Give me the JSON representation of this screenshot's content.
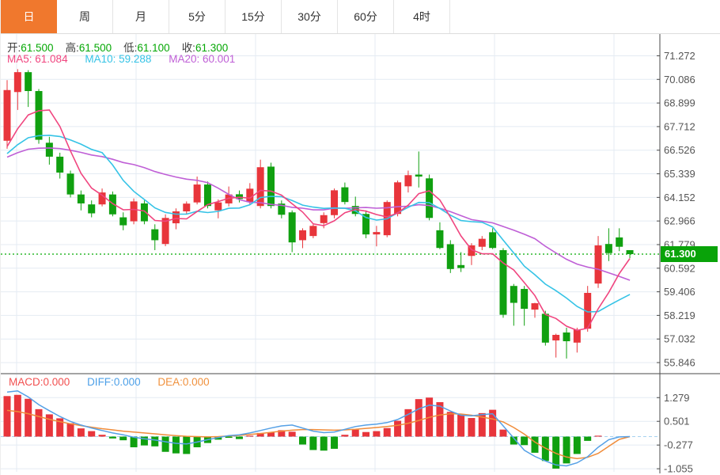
{
  "tabs": {
    "active_index": 0,
    "items": [
      {
        "label": "日"
      },
      {
        "label": "周"
      },
      {
        "label": "月"
      },
      {
        "label": "5分"
      },
      {
        "label": "15分"
      },
      {
        "label": "30分"
      },
      {
        "label": "60分"
      },
      {
        "label": "4时"
      }
    ]
  },
  "ohlc_row": {
    "open": {
      "label": "开:",
      "value": "61.500"
    },
    "high": {
      "label": "高:",
      "value": "61.500"
    },
    "low": {
      "label": "低:",
      "value": "61.100"
    },
    "close": {
      "label": "收:",
      "value": "61.300"
    }
  },
  "ma_row": {
    "ma5": {
      "label": "MA5:",
      "value": "61.084"
    },
    "ma10": {
      "label": "MA10:",
      "value": "59.288"
    },
    "ma20": {
      "label": "MA20:",
      "value": "60.001"
    }
  },
  "macd_row": {
    "macd": {
      "label": "MACD:",
      "value": "0.000"
    },
    "diff": {
      "label": "DIFF:",
      "value": "0.000"
    },
    "dea": {
      "label": "DEA:",
      "value": "0.000"
    }
  },
  "price_line": {
    "label": "61.300",
    "value": 61.3
  },
  "colors": {
    "up": "#e8353b",
    "down": "#10a010",
    "ma5": "#f0457f",
    "ma10": "#35c3e6",
    "ma20": "#bf5fd6",
    "diff_line": "#55a0e6",
    "dea_line": "#f08c3a",
    "price_dotted": "#2db92d",
    "badge_bg": "#09a309",
    "tab_active_bg": "#f0782d",
    "grid": "#e4ebf3",
    "axis": "#4a4a4a",
    "axis_label": "#555555",
    "zero_dashed": "#a6d2f0"
  },
  "chart_data": {
    "type": "candlestick",
    "title": "",
    "xlabel": "",
    "ylabel": "",
    "legend": [
      "MA5",
      "MA10",
      "MA20",
      "MACD",
      "DIFF",
      "DEA"
    ],
    "panels": [
      {
        "type": "candlestick",
        "y_ticks": [
          71.272,
          70.086,
          68.899,
          67.712,
          66.526,
          65.339,
          64.152,
          62.966,
          61.779,
          60.592,
          59.406,
          58.219,
          57.032,
          55.846
        ],
        "last_price": 61.3,
        "ma_periods": [
          5,
          10,
          20
        ],
        "ma_seed": 66.0,
        "candles": [
          [
            67.0,
            70.05,
            66.6,
            69.55
          ],
          [
            69.45,
            70.6,
            68.55,
            70.45
          ],
          [
            70.45,
            70.55,
            68.7,
            69.5
          ],
          [
            69.5,
            69.6,
            66.85,
            67.05
          ],
          [
            66.9,
            67.2,
            65.8,
            66.2
          ],
          [
            66.2,
            66.4,
            65.1,
            65.4
          ],
          [
            65.35,
            65.5,
            64.15,
            64.3
          ],
          [
            64.3,
            64.5,
            63.5,
            63.85
          ],
          [
            63.8,
            64.0,
            63.15,
            63.35
          ],
          [
            63.8,
            64.6,
            63.7,
            64.4
          ],
          [
            64.3,
            64.45,
            63.2,
            63.3
          ],
          [
            63.15,
            63.4,
            62.5,
            62.75
          ],
          [
            62.95,
            64.1,
            62.8,
            63.95
          ],
          [
            63.85,
            64.0,
            62.8,
            62.95
          ],
          [
            62.55,
            62.8,
            61.5,
            62.0
          ],
          [
            61.81,
            63.3,
            61.7,
            63.12
          ],
          [
            62.85,
            63.6,
            62.55,
            63.45
          ],
          [
            63.45,
            63.95,
            63.3,
            63.84
          ],
          [
            63.9,
            65.2,
            63.8,
            64.8
          ],
          [
            64.8,
            64.95,
            63.6,
            63.72
          ],
          [
            63.5,
            64.05,
            63.1,
            63.9
          ],
          [
            63.85,
            64.7,
            63.7,
            64.3
          ],
          [
            64.31,
            64.5,
            63.9,
            64.07
          ],
          [
            63.92,
            64.87,
            63.8,
            64.59
          ],
          [
            63.72,
            66.05,
            63.6,
            65.67
          ],
          [
            65.7,
            65.9,
            63.6,
            63.72
          ],
          [
            63.84,
            64.0,
            63.1,
            63.28
          ],
          [
            63.4,
            63.5,
            61.4,
            61.89
          ],
          [
            62.0,
            62.6,
            61.6,
            62.5
          ],
          [
            62.21,
            62.8,
            62.1,
            62.72
          ],
          [
            62.86,
            63.4,
            62.6,
            63.26
          ],
          [
            63.26,
            64.6,
            63.1,
            64.51
          ],
          [
            64.66,
            64.9,
            63.8,
            63.92
          ],
          [
            63.72,
            64.19,
            63.2,
            63.32
          ],
          [
            63.32,
            63.5,
            62.1,
            62.29
          ],
          [
            62.29,
            62.72,
            61.69,
            62.41
          ],
          [
            62.25,
            64.0,
            62.15,
            63.92
          ],
          [
            63.32,
            65.0,
            63.2,
            64.91
          ],
          [
            64.71,
            65.5,
            64.4,
            65.27
          ],
          [
            65.3,
            66.46,
            64.65,
            65.2
          ],
          [
            65.11,
            65.3,
            63.0,
            63.12
          ],
          [
            62.5,
            62.9,
            61.55,
            61.61
          ],
          [
            61.8,
            62.0,
            60.35,
            60.55
          ],
          [
            60.75,
            61.4,
            60.4,
            60.6
          ],
          [
            61.21,
            61.85,
            60.75,
            61.74
          ],
          [
            61.67,
            62.21,
            61.5,
            62.07
          ],
          [
            62.4,
            62.6,
            61.55,
            61.61
          ],
          [
            61.5,
            61.6,
            58.1,
            58.25
          ],
          [
            59.7,
            59.8,
            57.7,
            58.85
          ],
          [
            59.55,
            59.7,
            57.7,
            58.55
          ],
          [
            58.51,
            58.85,
            58.1,
            58.83
          ],
          [
            58.3,
            58.45,
            56.7,
            56.85
          ],
          [
            56.96,
            57.3,
            56.1,
            57.24
          ],
          [
            57.36,
            57.6,
            56.05,
            56.92
          ],
          [
            56.85,
            57.6,
            56.35,
            57.5
          ],
          [
            57.55,
            59.7,
            57.4,
            59.35
          ],
          [
            59.82,
            62.21,
            59.6,
            61.74
          ],
          [
            61.81,
            62.6,
            60.95,
            61.35
          ],
          [
            62.14,
            62.6,
            61.45,
            61.67
          ],
          [
            61.5,
            61.5,
            61.1,
            61.3
          ]
        ]
      },
      {
        "type": "macd",
        "y_ticks": [
          1.279,
          0.501,
          -0.277,
          -1.055
        ],
        "hist": [
          1.33,
          1.37,
          1.24,
          0.9,
          0.73,
          0.6,
          0.44,
          0.27,
          0.18,
          0.06,
          -0.06,
          -0.12,
          -0.35,
          -0.29,
          -0.32,
          -0.5,
          -0.55,
          -0.57,
          -0.35,
          -0.21,
          -0.1,
          -0.04,
          -0.08,
          0.03,
          0.12,
          0.13,
          0.21,
          0.16,
          -0.26,
          -0.44,
          -0.46,
          -0.4,
          0.06,
          0.23,
          0.15,
          0.18,
          0.28,
          0.52,
          0.9,
          1.23,
          1.28,
          1.13,
          0.81,
          0.72,
          0.61,
          0.77,
          0.88,
          0.23,
          -0.26,
          -0.28,
          -0.53,
          -0.8,
          -1.05,
          -0.88,
          -0.57,
          -0.14,
          0.03,
          0.0,
          0.0,
          0.0
        ],
        "diff": [
          1.46,
          1.5,
          1.3,
          1.05,
          0.85,
          0.66,
          0.5,
          0.38,
          0.28,
          0.2,
          0.12,
          0.06,
          -0.02,
          -0.07,
          -0.11,
          -0.17,
          -0.22,
          -0.24,
          -0.18,
          -0.1,
          -0.03,
          0.03,
          0.06,
          0.12,
          0.2,
          0.28,
          0.35,
          0.38,
          0.28,
          0.18,
          0.13,
          0.15,
          0.24,
          0.33,
          0.38,
          0.41,
          0.46,
          0.56,
          0.73,
          0.91,
          1.03,
          1.0,
          0.84,
          0.7,
          0.68,
          0.72,
          0.75,
          0.35,
          -0.05,
          -0.45,
          -0.65,
          -0.8,
          -0.93,
          -0.96,
          -0.86,
          -0.66,
          -0.35,
          -0.1,
          -0.01,
          0.0
        ],
        "dea": [
          0.86,
          0.82,
          0.75,
          0.66,
          0.57,
          0.49,
          0.42,
          0.36,
          0.31,
          0.26,
          0.22,
          0.18,
          0.15,
          0.12,
          0.09,
          0.06,
          0.03,
          0.01,
          0.0,
          -0.01,
          0.0,
          0.02,
          0.04,
          0.07,
          0.1,
          0.14,
          0.18,
          0.21,
          0.23,
          0.23,
          0.22,
          0.21,
          0.22,
          0.24,
          0.27,
          0.3,
          0.33,
          0.37,
          0.44,
          0.53,
          0.63,
          0.71,
          0.75,
          0.74,
          0.7,
          0.64,
          0.58,
          0.48,
          0.3,
          0.08,
          -0.18,
          -0.38,
          -0.55,
          -0.67,
          -0.72,
          -0.68,
          -0.55,
          -0.32,
          -0.09,
          0.0
        ]
      }
    ]
  }
}
